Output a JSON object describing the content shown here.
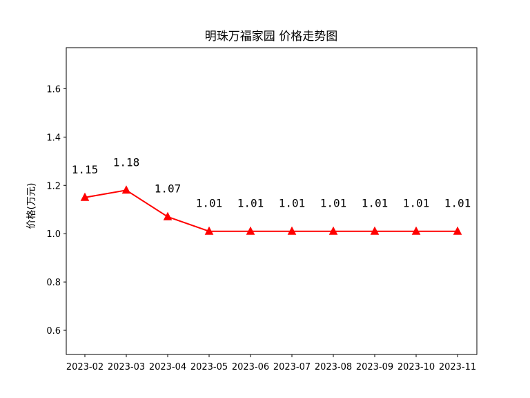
{
  "chart_data": {
    "type": "line",
    "title": "明珠万福家园 价格走势图",
    "xlabel": "",
    "ylabel": "价格(万元)",
    "categories": [
      "2023-02",
      "2023-03",
      "2023-04",
      "2023-05",
      "2023-06",
      "2023-07",
      "2023-08",
      "2023-09",
      "2023-10",
      "2023-11"
    ],
    "series": [
      {
        "values": [
          1.15,
          1.18,
          1.07,
          1.01,
          1.01,
          1.01,
          1.01,
          1.01,
          1.01,
          1.01
        ],
        "color": "#ff0000",
        "marker": "triangle-up"
      }
    ],
    "data_labels": [
      "1.15",
      "1.18",
      "1.07",
      "1.01",
      "1.01",
      "1.01",
      "1.01",
      "1.01",
      "1.01",
      "1.01"
    ],
    "ylim": [
      0.5,
      1.77
    ],
    "yticks": [
      0.6,
      0.8,
      1.0,
      1.2,
      1.4,
      1.6
    ],
    "ytick_labels": [
      "0.6",
      "0.8",
      "1.0",
      "1.2",
      "1.4",
      "1.6"
    ],
    "grid": false,
    "legend": "none"
  }
}
